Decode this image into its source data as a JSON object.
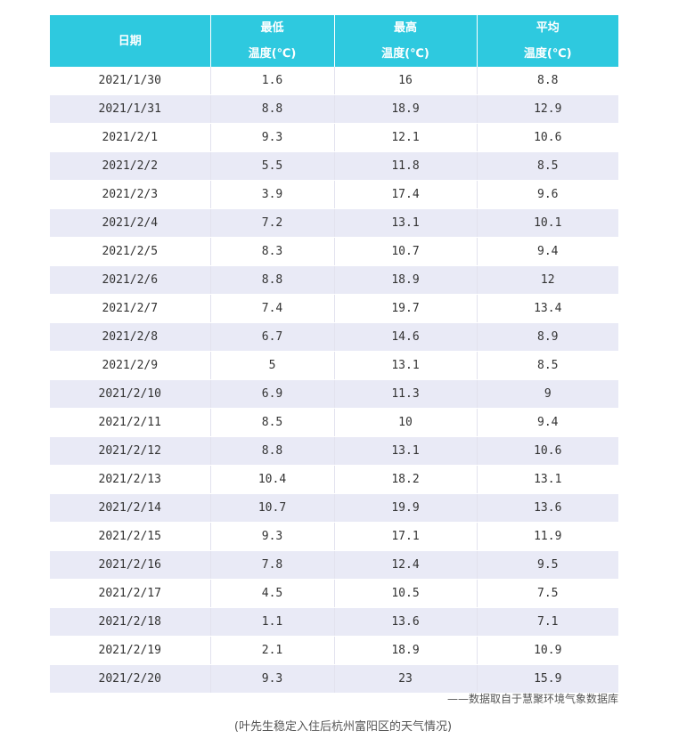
{
  "table": {
    "headers": {
      "date": "日期",
      "min": {
        "line1": "最低",
        "line2": "温度(℃)"
      },
      "max": {
        "line1": "最高",
        "line2": "温度(℃)"
      },
      "avg": {
        "line1": "平均",
        "line2": "温度(℃)"
      }
    },
    "rows": [
      {
        "date": "2021/1/30",
        "min": "1.6",
        "max": "16",
        "avg": "8.8"
      },
      {
        "date": "2021/1/31",
        "min": "8.8",
        "max": "18.9",
        "avg": "12.9"
      },
      {
        "date": "2021/2/1",
        "min": "9.3",
        "max": "12.1",
        "avg": "10.6"
      },
      {
        "date": "2021/2/2",
        "min": "5.5",
        "max": "11.8",
        "avg": "8.5"
      },
      {
        "date": "2021/2/3",
        "min": "3.9",
        "max": "17.4",
        "avg": "9.6"
      },
      {
        "date": "2021/2/4",
        "min": "7.2",
        "max": "13.1",
        "avg": "10.1"
      },
      {
        "date": "2021/2/5",
        "min": "8.3",
        "max": "10.7",
        "avg": "9.4"
      },
      {
        "date": "2021/2/6",
        "min": "8.8",
        "max": "18.9",
        "avg": "12"
      },
      {
        "date": "2021/2/7",
        "min": "7.4",
        "max": "19.7",
        "avg": "13.4"
      },
      {
        "date": "2021/2/8",
        "min": "6.7",
        "max": "14.6",
        "avg": "8.9"
      },
      {
        "date": "2021/2/9",
        "min": "5",
        "max": "13.1",
        "avg": "8.5"
      },
      {
        "date": "2021/2/10",
        "min": "6.9",
        "max": "11.3",
        "avg": "9"
      },
      {
        "date": "2021/2/11",
        "min": "8.5",
        "max": "10",
        "avg": "9.4"
      },
      {
        "date": "2021/2/12",
        "min": "8.8",
        "max": "13.1",
        "avg": "10.6"
      },
      {
        "date": "2021/2/13",
        "min": "10.4",
        "max": "18.2",
        "avg": "13.1"
      },
      {
        "date": "2021/2/14",
        "min": "10.7",
        "max": "19.9",
        "avg": "13.6"
      },
      {
        "date": "2021/2/15",
        "min": "9.3",
        "max": "17.1",
        "avg": "11.9"
      },
      {
        "date": "2021/2/16",
        "min": "7.8",
        "max": "12.4",
        "avg": "9.5"
      },
      {
        "date": "2021/2/17",
        "min": "4.5",
        "max": "10.5",
        "avg": "7.5"
      },
      {
        "date": "2021/2/18",
        "min": "1.1",
        "max": "13.6",
        "avg": "7.1"
      },
      {
        "date": "2021/2/19",
        "min": "2.1",
        "max": "18.9",
        "avg": "10.9"
      },
      {
        "date": "2021/2/20",
        "min": "9.3",
        "max": "23",
        "avg": "15.9"
      }
    ]
  },
  "source_note": "——数据取自于慧聚环境气象数据库",
  "caption": "(叶先生稳定入住后杭州富阳区的天气情况)",
  "colors": {
    "header_bg": "#2ec9df",
    "header_text": "#ffffff",
    "row_alt_bg": "#e9eaf6",
    "text": "#333333"
  }
}
